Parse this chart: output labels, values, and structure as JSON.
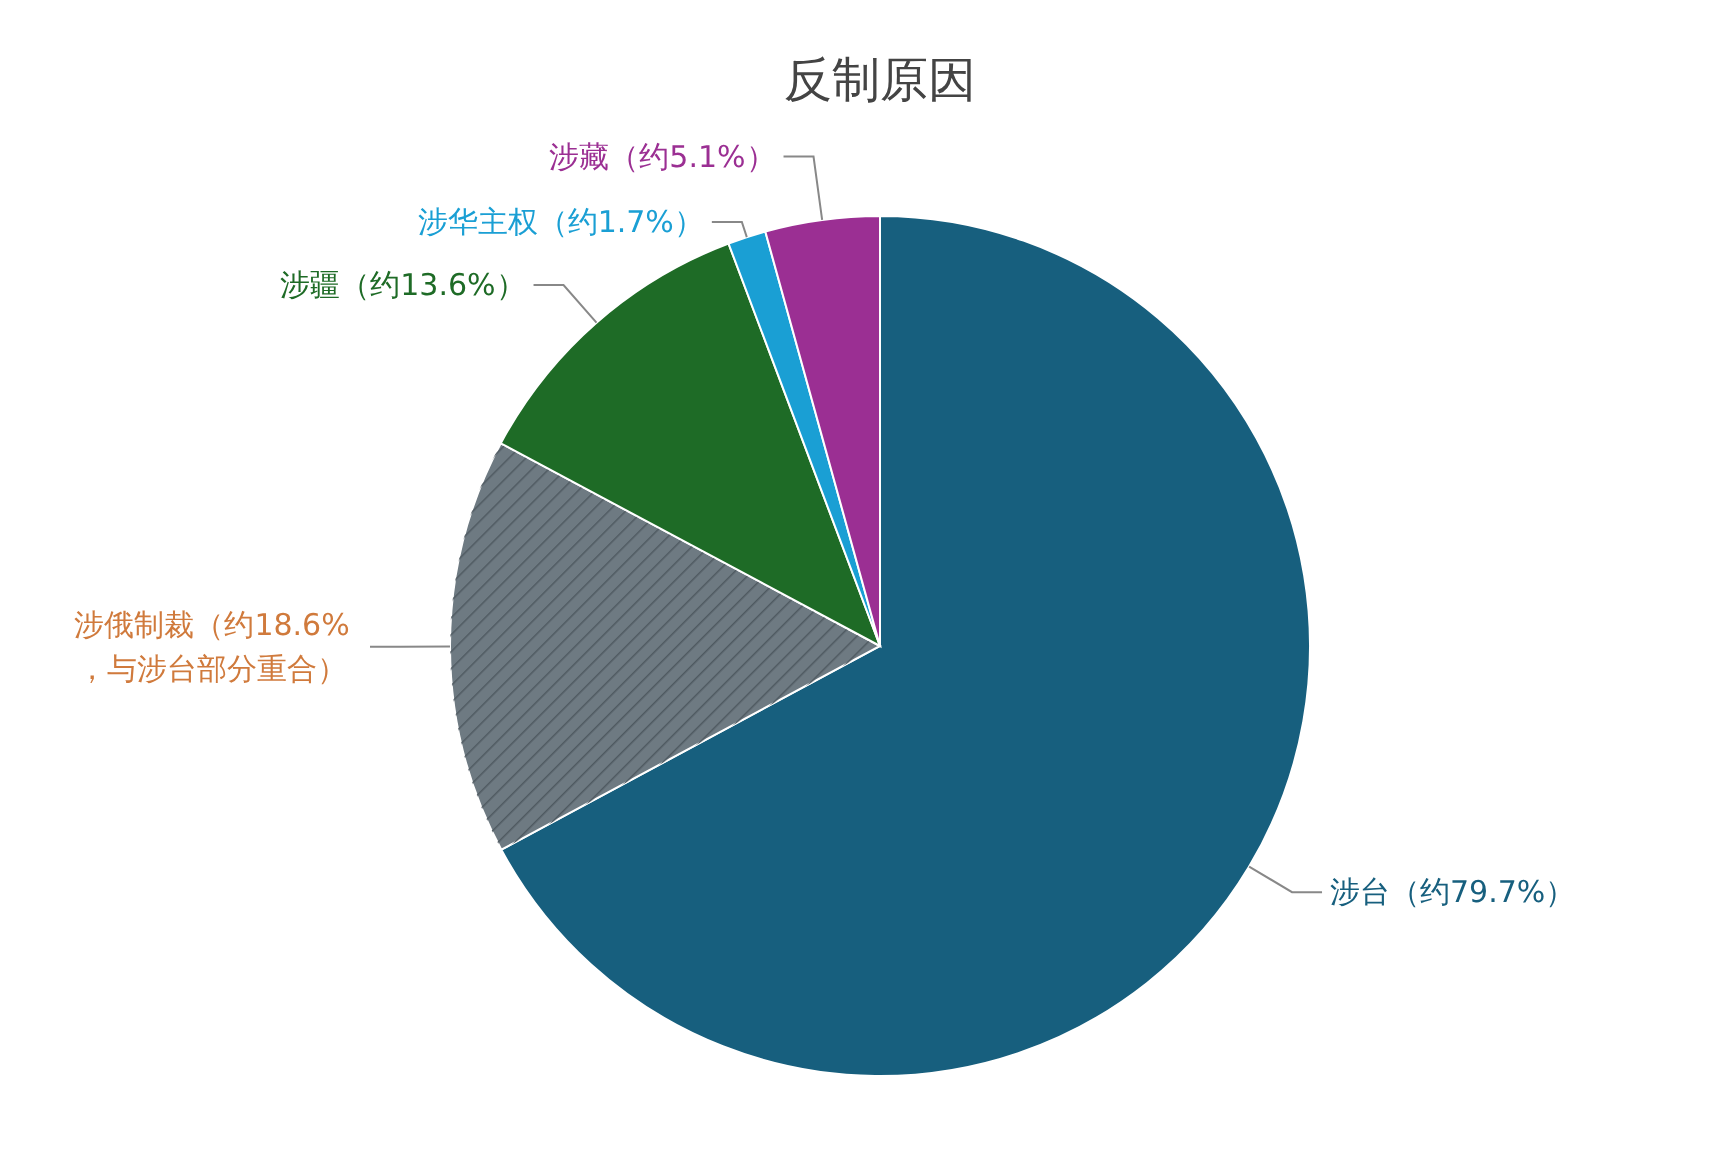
{
  "chart_data": {
    "type": "pie",
    "title": "反制原因",
    "categories": [
      "涉台",
      "涉俄制裁",
      "涉疆",
      "涉华主权",
      "涉藏"
    ],
    "values": [
      79.7,
      18.6,
      13.6,
      1.7,
      5.1
    ],
    "value_labels": [
      "（约79.7%）",
      "（约18.6%，与涉台部分重合）",
      "（约13.6%）",
      "（约1.7%）",
      "（约5.1%）"
    ],
    "colors": [
      "#175f7e",
      "#6e7a82",
      "#1e6b26",
      "#1a9fd4",
      "#9b2f93"
    ]
  }
}
